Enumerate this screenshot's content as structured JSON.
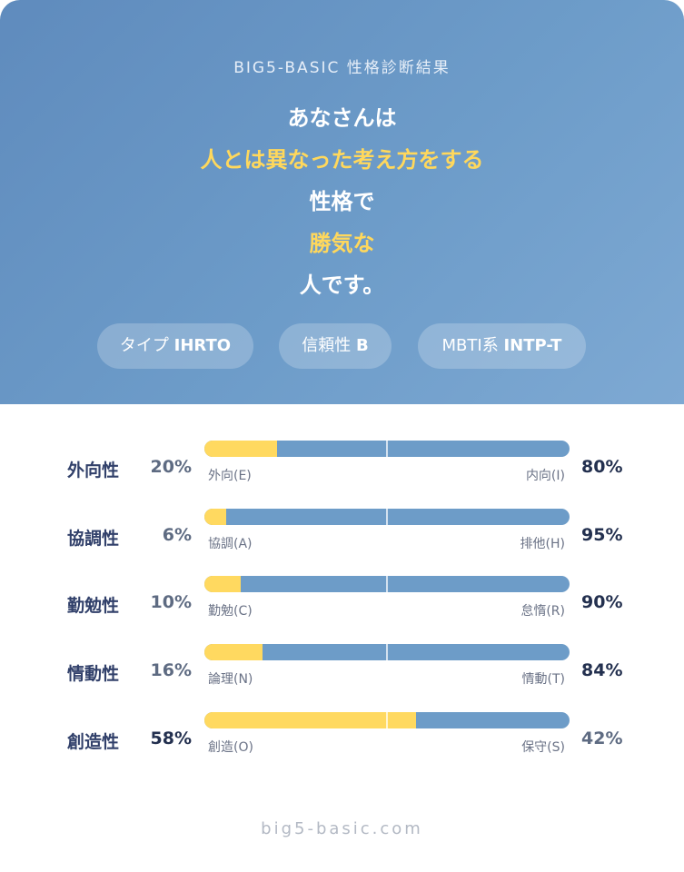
{
  "header": {
    "subtitle": "BIG5-BASIC 性格診断結果",
    "lines": [
      "あなさんは",
      "人とは異なった考え方をする",
      "性格で",
      "勝気な",
      "人です。"
    ]
  },
  "chips": [
    {
      "label": "タイプ",
      "value": "IHRTO"
    },
    {
      "label": "信頼性",
      "value": "B"
    },
    {
      "label": "MBTI系",
      "value": "INTP-T"
    }
  ],
  "traits": [
    {
      "name": "外向性",
      "left_pct": "20%",
      "left_pole": "外向(E)",
      "right_pole": "内向(I)",
      "right_pct": "80%",
      "fill": 0.2
    },
    {
      "name": "協調性",
      "left_pct": "6%",
      "left_pole": "協調(A)",
      "right_pole": "排他(H)",
      "right_pct": "95%",
      "fill": 0.06
    },
    {
      "name": "勤勉性",
      "left_pct": "10%",
      "left_pole": "勤勉(C)",
      "right_pole": "怠惰(R)",
      "right_pct": "90%",
      "fill": 0.1
    },
    {
      "name": "情動性",
      "left_pct": "16%",
      "left_pole": "論理(N)",
      "right_pole": "情動(T)",
      "right_pct": "84%",
      "fill": 0.16
    },
    {
      "name": "創造性",
      "left_pct": "58%",
      "left_pole": "創造(O)",
      "right_pole": "保守(S)",
      "right_pct": "42%",
      "fill": 0.58
    }
  ],
  "colors": {
    "accent_yellow": "#ffd960",
    "bar_blue": "#6d9cc8",
    "header_blue": "#6d9cc9"
  },
  "footer": {
    "site": "big5-basic.com"
  }
}
